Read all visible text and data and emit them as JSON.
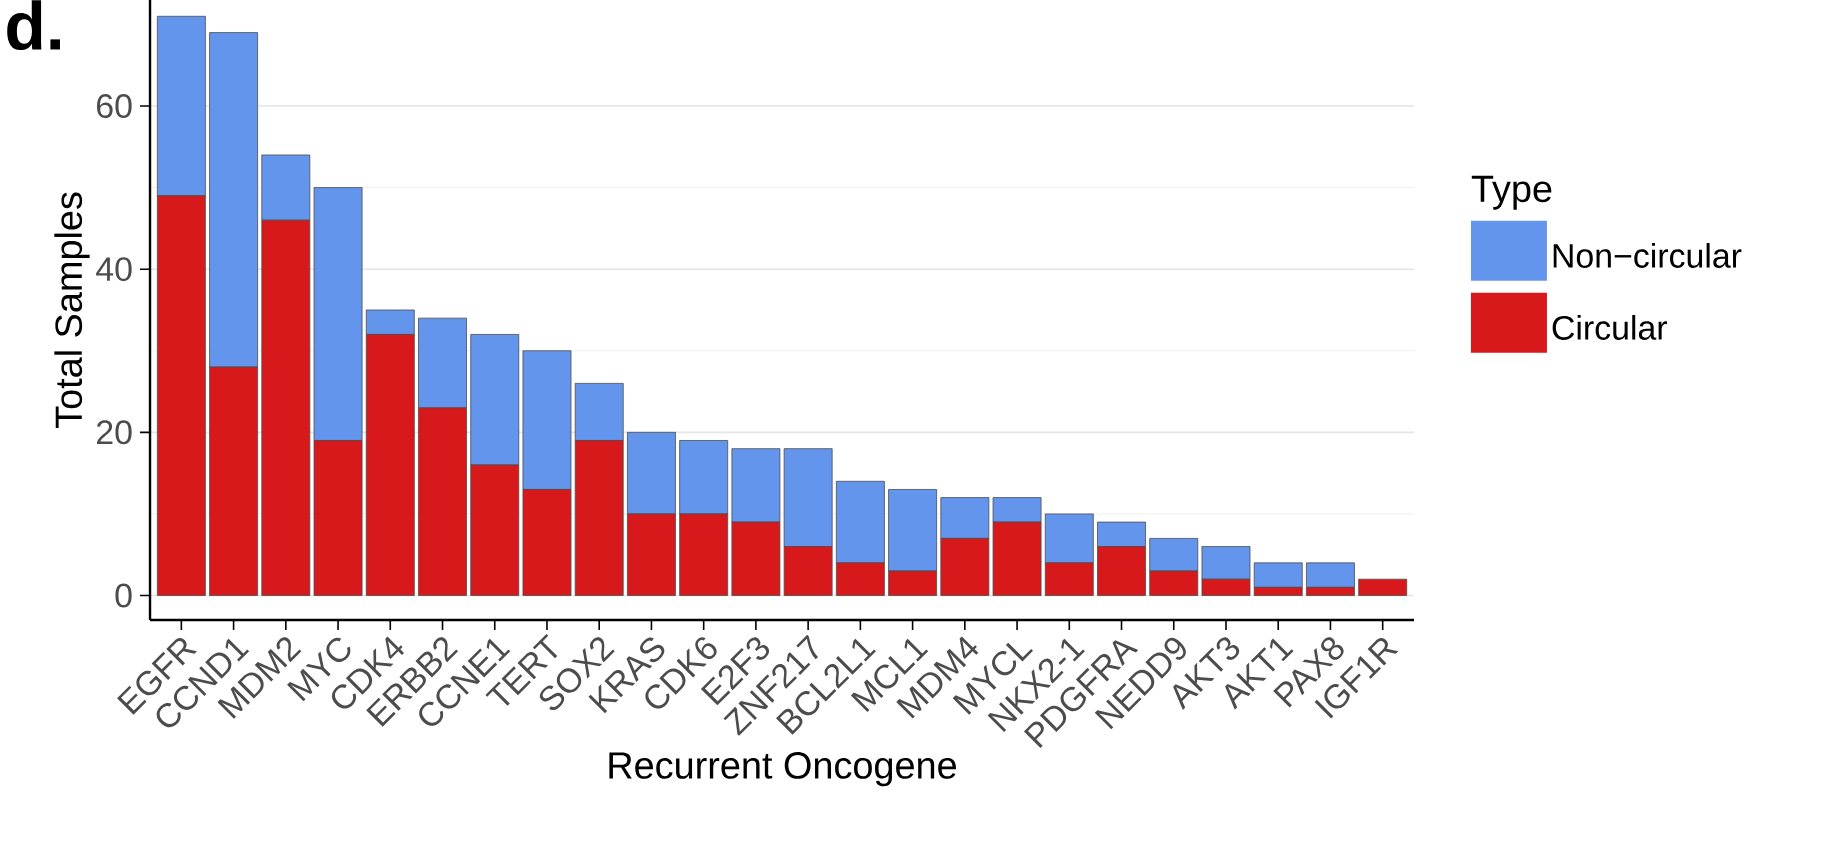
{
  "chart_data": {
    "type": "bar",
    "stacked": true,
    "xlabel": "Recurrent Oncogene",
    "ylabel": "Total Samples",
    "legend_title": "Type",
    "categories": [
      "EGFR",
      "CCND1",
      "MDM2",
      "MYC",
      "CDK4",
      "ERBB2",
      "CCNE1",
      "TERT",
      "SOX2",
      "KRAS",
      "CDK6",
      "E2F3",
      "ZNF217",
      "BCL2L1",
      "MCL1",
      "MDM4",
      "MYCL",
      "NKX2-1",
      "PDGFRA",
      "NEDD9",
      "AKT3",
      "AKT1",
      "PAX8",
      "IGF1R"
    ],
    "series": [
      {
        "name": "Circular",
        "color": "#d7191c",
        "values": [
          49,
          28,
          46,
          19,
          32,
          23,
          16,
          13,
          19,
          10,
          10,
          9,
          6,
          4,
          3,
          7,
          9,
          4,
          6,
          3,
          2,
          1,
          1,
          2
        ]
      },
      {
        "name": "Non−circular",
        "color": "#6495ed",
        "values": [
          22,
          41,
          8,
          31,
          3,
          11,
          16,
          17,
          7,
          10,
          9,
          9,
          12,
          10,
          10,
          5,
          3,
          6,
          3,
          4,
          4,
          3,
          3,
          0
        ]
      }
    ],
    "ylim": [
      -3,
      73
    ],
    "yticks": [
      0,
      20,
      40,
      60
    ],
    "grid": "y",
    "legend": "right",
    "annotations": [
      "d."
    ]
  }
}
